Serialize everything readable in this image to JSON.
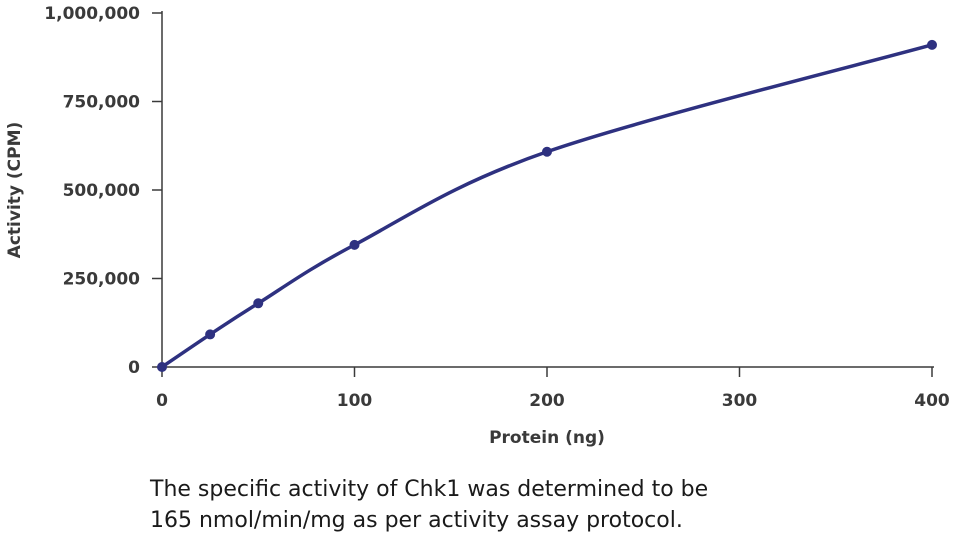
{
  "chart_data": {
    "type": "line",
    "title": "",
    "xlabel": "Protein (ng)",
    "ylabel": "Activity (CPM)",
    "xlim": [
      0,
      400
    ],
    "ylim": [
      0,
      1000000
    ],
    "x_ticks": [
      0,
      100,
      200,
      300,
      400
    ],
    "x_tick_labels": [
      "0",
      "100",
      "200",
      "300",
      "400"
    ],
    "y_ticks": [
      0,
      250000,
      500000,
      750000,
      1000000
    ],
    "y_tick_labels": [
      "0",
      "250,000",
      "500,000",
      "750,000",
      "1,000,000"
    ],
    "grid": false,
    "series": [
      {
        "color": "#2e3180",
        "x": [
          0,
          25,
          50,
          100,
          200,
          400
        ],
        "y": [
          0,
          92000,
          180000,
          345000,
          608000,
          910000
        ]
      }
    ]
  },
  "caption": {
    "line1": "The specific activity of Chk1 was determined to be",
    "line2": "165 nmol/min/mg as per activity assay protocol."
  }
}
